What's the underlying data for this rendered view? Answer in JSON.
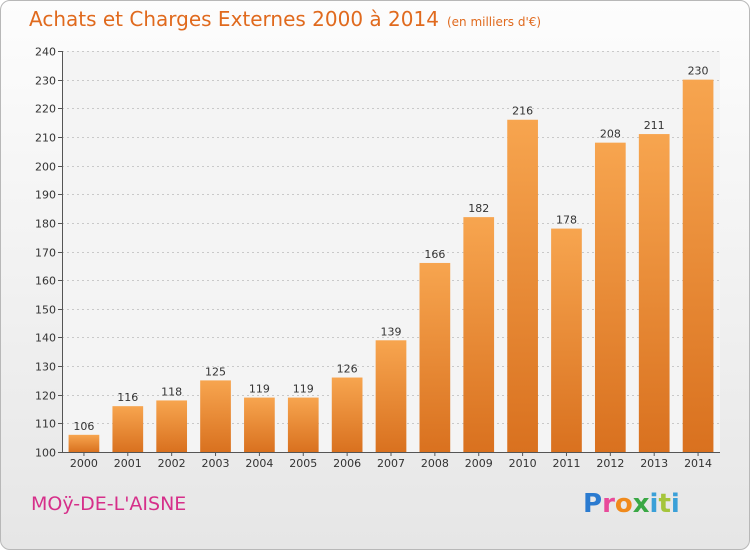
{
  "title": "Achats et Charges Externes 2000 à 2014",
  "subtitle": "(en milliers d'€)",
  "town": "MOÿ-DE-L'AISNE",
  "logo": {
    "p": "P",
    "r": "r",
    "o": "o",
    "x": "x",
    "i": "i",
    "t": "t",
    "i2": "i"
  },
  "colors": {
    "bar_light": "#f7a54f",
    "bar_dark": "#d9711f",
    "title": "#e06a1e",
    "town": "#d62f8a"
  },
  "chart_data": {
    "type": "bar",
    "categories": [
      "2000",
      "2001",
      "2002",
      "2003",
      "2004",
      "2005",
      "2006",
      "2007",
      "2008",
      "2009",
      "2010",
      "2011",
      "2012",
      "2013",
      "2014"
    ],
    "values": [
      106,
      116,
      118,
      125,
      119,
      119,
      126,
      139,
      166,
      182,
      216,
      178,
      208,
      211,
      230
    ],
    "ylim": [
      100,
      240
    ],
    "yticks": [
      100,
      110,
      120,
      130,
      140,
      150,
      160,
      170,
      180,
      190,
      200,
      210,
      220,
      230,
      240
    ],
    "grid": true
  }
}
